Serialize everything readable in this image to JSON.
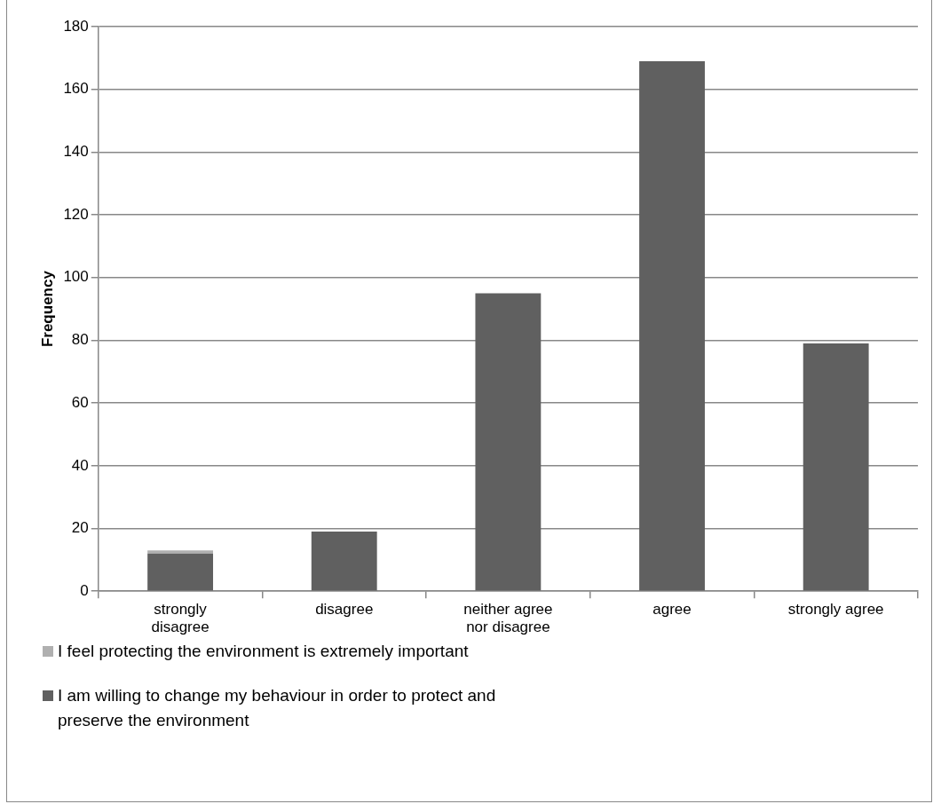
{
  "chart_data": {
    "type": "bar",
    "stacked": true,
    "ylabel": "Frequency",
    "categories": [
      "strongly disagree",
      "disagree",
      "neither agree nor disagree",
      "agree",
      "strongly agree"
    ],
    "series": [
      {
        "name": "I am willing to change my behaviour in order to protect and preserve the environment",
        "color": "#606060",
        "values": [
          12,
          19,
          95,
          169,
          79
        ]
      },
      {
        "name": "I feel protecting the environment is extremely important",
        "color": "#b0b0b0",
        "values": [
          1,
          0,
          0,
          0,
          0
        ]
      }
    ],
    "ylim": [
      0,
      180
    ],
    "yticks": [
      0,
      20,
      40,
      60,
      80,
      100,
      120,
      140,
      160,
      180
    ],
    "grid": "y",
    "legend": "bottom left"
  }
}
